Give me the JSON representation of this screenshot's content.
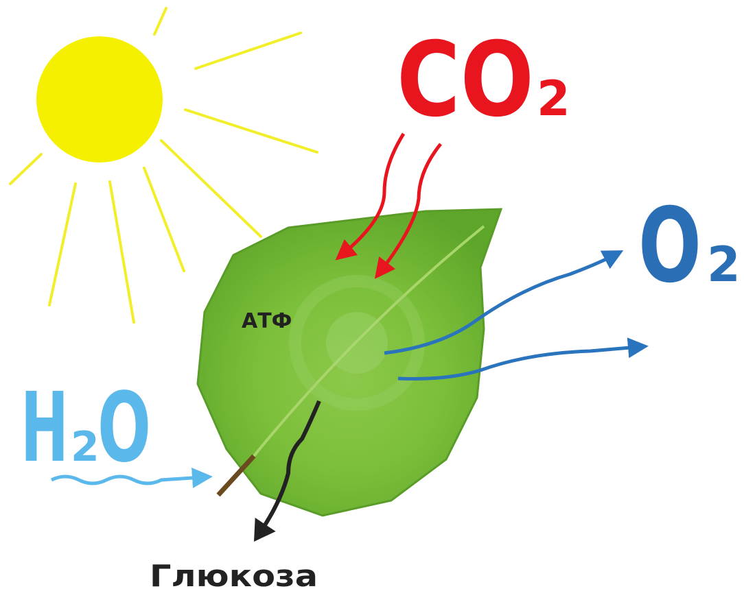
{
  "labels": {
    "co2": {
      "main": "CO",
      "sub": "2"
    },
    "o2": {
      "main": "O",
      "sub": "2"
    },
    "h2o": {
      "main1": "H",
      "sub": "2",
      "main2": "O"
    },
    "atp": "АТФ",
    "glucose": "Глюкоза"
  }
}
